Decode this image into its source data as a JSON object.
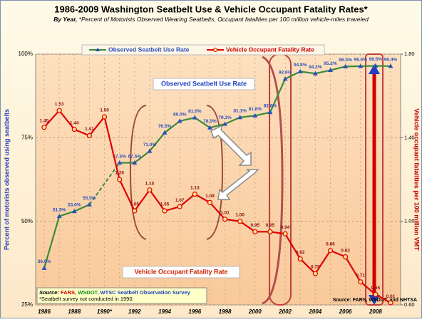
{
  "chart_data": {
    "type": "line",
    "title": "1986-2009 Washington Seatbelt Use & Vehicle Occupant Fatality Rates*",
    "subtitle_lead": "By Year,",
    "subtitle": "*Percent of Motorists Observed Wearing Seatbelts, Occupant fatalities per 100 million vehicle-miles traveled",
    "ylabel": "Percent of motorists observed using seatbelts",
    "y2label": "Vehicle occupant fatalities per 100 million VMT",
    "categories": [
      "1986",
      null,
      "1988",
      null,
      "1990*",
      null,
      "1992",
      null,
      "1994",
      null,
      "1996",
      null,
      "1998",
      null,
      "2000",
      null,
      "2002",
      null,
      "2004",
      null,
      "2006",
      null,
      "2008",
      null
    ],
    "ylim": [
      25,
      100
    ],
    "yticks": [
      {
        "value": 25,
        "label": "25%"
      },
      {
        "value": 50,
        "label": "50%"
      },
      {
        "value": 75,
        "label": "75%"
      },
      {
        "value": 100,
        "label": "100%"
      }
    ],
    "y2lim": [
      0.6,
      1.8
    ],
    "y2ticks": [
      {
        "value": 0.6,
        "label": "0.60"
      },
      {
        "value": 1.0,
        "label": "1.00"
      },
      {
        "value": 1.4,
        "label": "1.40"
      },
      {
        "value": 1.8,
        "label": "1.80"
      }
    ],
    "grid": true,
    "legend": "top",
    "series": [
      {
        "name": "Observed Seatbelt Use Rate",
        "color": "#3a8a3a",
        "marker_color": "#2a4fc0",
        "values": [
          36.0,
          51.5,
          53.0,
          55.0,
          null,
          67.5,
          67.5,
          71.0,
          76.5,
          80.0,
          81.0,
          78.0,
          79.1,
          81.1,
          81.6,
          82.6,
          92.6,
          94.8,
          94.2,
          95.2,
          96.3,
          96.4,
          96.5,
          96.4
        ],
        "value_labels": [
          "36.0%",
          "51.5%",
          "53.0%",
          "55.0%",
          null,
          "67.5%",
          "67.5%",
          "71.0%",
          "76.5%",
          "80.0%",
          "81.0%",
          "78.0%",
          "79.1%",
          "81.1%",
          "81.6%",
          "82.6%",
          "92.6%",
          "94.8%",
          "94.2%",
          "95.2%",
          "96.3%",
          "96.4%",
          "96.5%",
          "96.4%"
        ]
      },
      {
        "name": "Vehicle Occupant Fatality Rate",
        "color": "#e00000",
        "marker_color": "#ffe08a",
        "axis": "y2",
        "values": [
          1.45,
          1.53,
          1.44,
          1.41,
          1.5,
          1.2,
          1.05,
          1.15,
          1.05,
          1.07,
          1.13,
          1.09,
          1.01,
          1.0,
          0.95,
          0.95,
          0.94,
          0.82,
          0.75,
          0.86,
          0.83,
          0.71,
          0.65,
          0.61
        ],
        "value_labels": [
          "1.45",
          "1.53",
          "1.44",
          "1.41",
          "1.50",
          "1.20",
          "1.05",
          "1.15",
          "1.05",
          "1.07",
          "1.13",
          "1.09",
          "1.01",
          "1.00",
          "0.95",
          "0.95",
          "0.94",
          "0.82",
          "0.75",
          "0.86",
          "0.83",
          "0.71",
          "0.65",
          "0.61"
        ]
      }
    ],
    "annotations": {
      "seatbelt_box": "Observed Seatbelt Use Rate",
      "fatality_box": "Vehicle Occupant Fatality Rate",
      "source_label": "Source:",
      "source_items": [
        "FARS,",
        "WSDOT,",
        "WTSC Seatbelt Observation Survey"
      ],
      "footnote": "*Seatbelt survey not conducted in 1990.",
      "source_right": "Source: FARS, WSDOT, and NHTSA"
    }
  }
}
